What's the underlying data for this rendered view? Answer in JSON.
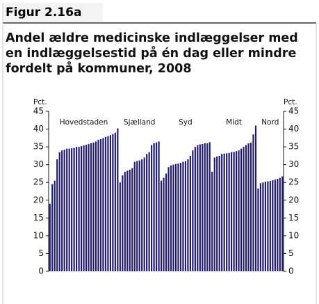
{
  "header": {
    "label": "Figur 2.16a"
  },
  "chart_data": {
    "type": "bar",
    "title": "Andel ældre medicinske indlæggelser med en indlæggelsestid på én dag eller mindre fordelt på kommuner, 2008",
    "ylabel": "Pct.",
    "y2label": "Pct.",
    "color": "#1f1a6e",
    "ylim": [
      0,
      45
    ],
    "yticks": [
      0,
      5,
      10,
      15,
      20,
      25,
      30,
      35,
      40,
      45
    ],
    "y2lim": [
      0,
      45
    ],
    "y2ticks": [
      0,
      5,
      10,
      15,
      20,
      25,
      30,
      35,
      40,
      45
    ],
    "groups": [
      {
        "name": "Hovedstaden",
        "values": [
          19,
          24.5,
          25.5,
          31.5,
          33.5,
          34,
          34.2,
          34.5,
          34.5,
          34.6,
          34.7,
          35,
          35,
          35.2,
          35.4,
          35.6,
          35.8,
          36,
          36.2,
          36.5,
          37,
          37.2,
          37.5,
          37.8,
          38,
          38.3,
          38.6,
          39,
          40.2
        ]
      },
      {
        "name": "Sjælland",
        "values": [
          25,
          27,
          28,
          28.3,
          28.6,
          29,
          30.8,
          31,
          31.2,
          31.5,
          32,
          33,
          33.5,
          35.5,
          36,
          36.2,
          36.5
        ]
      },
      {
        "name": "Syd",
        "values": [
          25.5,
          26.3,
          27.5,
          29.3,
          29.8,
          30,
          30.2,
          30.3,
          30.5,
          30.8,
          31,
          31.5,
          32.5,
          34,
          35,
          35.5,
          35.7,
          35.8,
          36,
          36,
          36.3
        ]
      },
      {
        "name": "Midt",
        "values": [
          28,
          32,
          32.3,
          32.5,
          33,
          33.1,
          33.2,
          33.3,
          33.5,
          33.6,
          33.8,
          34,
          34.5,
          35,
          35.5,
          36,
          36.2,
          38.5,
          41
        ]
      },
      {
        "name": "Nord",
        "values": [
          23.3,
          24.8,
          25,
          25.2,
          25.3,
          25.4,
          25.6,
          25.8,
          26,
          26.3,
          26.7
        ]
      }
    ]
  }
}
